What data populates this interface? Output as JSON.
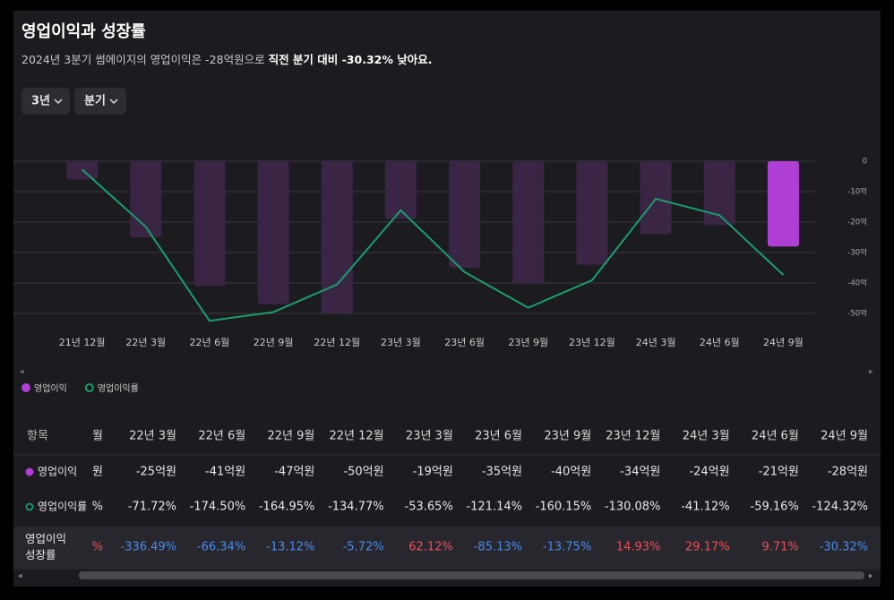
{
  "header": {
    "title": "영업이익과 성장률",
    "subtitle": "2024년 3분기 썸에이지의 영업이익은 -28억원으로 ",
    "subtitle_bold": "직전 분기 대비 -30.32% 낮아요."
  },
  "controls": [
    "3년",
    "분기"
  ],
  "chart_data": {
    "type": "bar",
    "categories": [
      "21년 12월",
      "22년 3월",
      "22년 6월",
      "22년 9월",
      "22년 12월",
      "23년 3월",
      "23년 6월",
      "23년 9월",
      "23년 12월",
      "24년 3월",
      "24년 6월",
      "24년 9월"
    ],
    "series": [
      {
        "name": "영업이익",
        "color": "#b03fd6",
        "colors": [
          "#3a2544",
          "#3a2544",
          "#3a2544",
          "#3a2544",
          "#3a2544",
          "#3a2544",
          "#3a2544",
          "#3a2544",
          "#3a2544",
          "#3a2544",
          "#3a2544",
          "#b03fd6"
        ],
        "values": [
          -6,
          -25,
          -41,
          -47,
          -50,
          -19,
          -35,
          -40,
          -34,
          -24,
          -21,
          -28
        ]
      },
      {
        "name": "영업이익률",
        "color": "#1a9e6e",
        "axis": "y2",
        "values": [
          -9,
          -71.72,
          -174.5,
          -164.95,
          -134.77,
          -53.65,
          -121.14,
          -160.15,
          -130.08,
          -41.12,
          -59.16,
          -124.32
        ]
      }
    ],
    "ylim": [
      -50,
      0
    ],
    "yticks": [
      0,
      {
        "value": -10,
        "label": "-10억"
      },
      {
        "value": -20,
        "label": "-20억"
      },
      {
        "value": -30,
        "label": "-30억"
      },
      {
        "value": -40,
        "label": "-40억"
      },
      {
        "value": -50,
        "label": "-50억"
      }
    ],
    "y2lim": [
      -166.4,
      0
    ],
    "grid": true,
    "legend": "bottom-left"
  },
  "table": {
    "header": [
      "항목",
      "월",
      "22년 3월",
      "22년 6월",
      "22년 9월",
      "22년 12월",
      "23년 3월",
      "23년 6월",
      "23년 9월",
      "23년 12월",
      "24년 3월",
      "24년 6월",
      "24년 9월"
    ],
    "rows": [
      [
        "영업이익",
        "원",
        "-25억원",
        "-41억원",
        "-47억원",
        "-50억원",
        "-19억원",
        "-35억원",
        "-40억원",
        "-34억원",
        "-24억원",
        "-21억원",
        "-28억원"
      ],
      [
        "영업이익률",
        "%",
        "-71.72%",
        "-174.50%",
        "-164.95%",
        "-134.77%",
        "-53.65%",
        "-121.14%",
        "-160.15%",
        "-130.08%",
        "-41.12%",
        "-59.16%",
        "-124.32%"
      ],
      [
        "영업이익 성장률",
        "%",
        "-336.49%",
        "-66.34%",
        "-13.12%",
        "-5.72%",
        "62.12%",
        "-85.13%",
        "-13.75%",
        "14.93%",
        "29.17%",
        "9.71%",
        "-30.32%"
      ]
    ]
  }
}
